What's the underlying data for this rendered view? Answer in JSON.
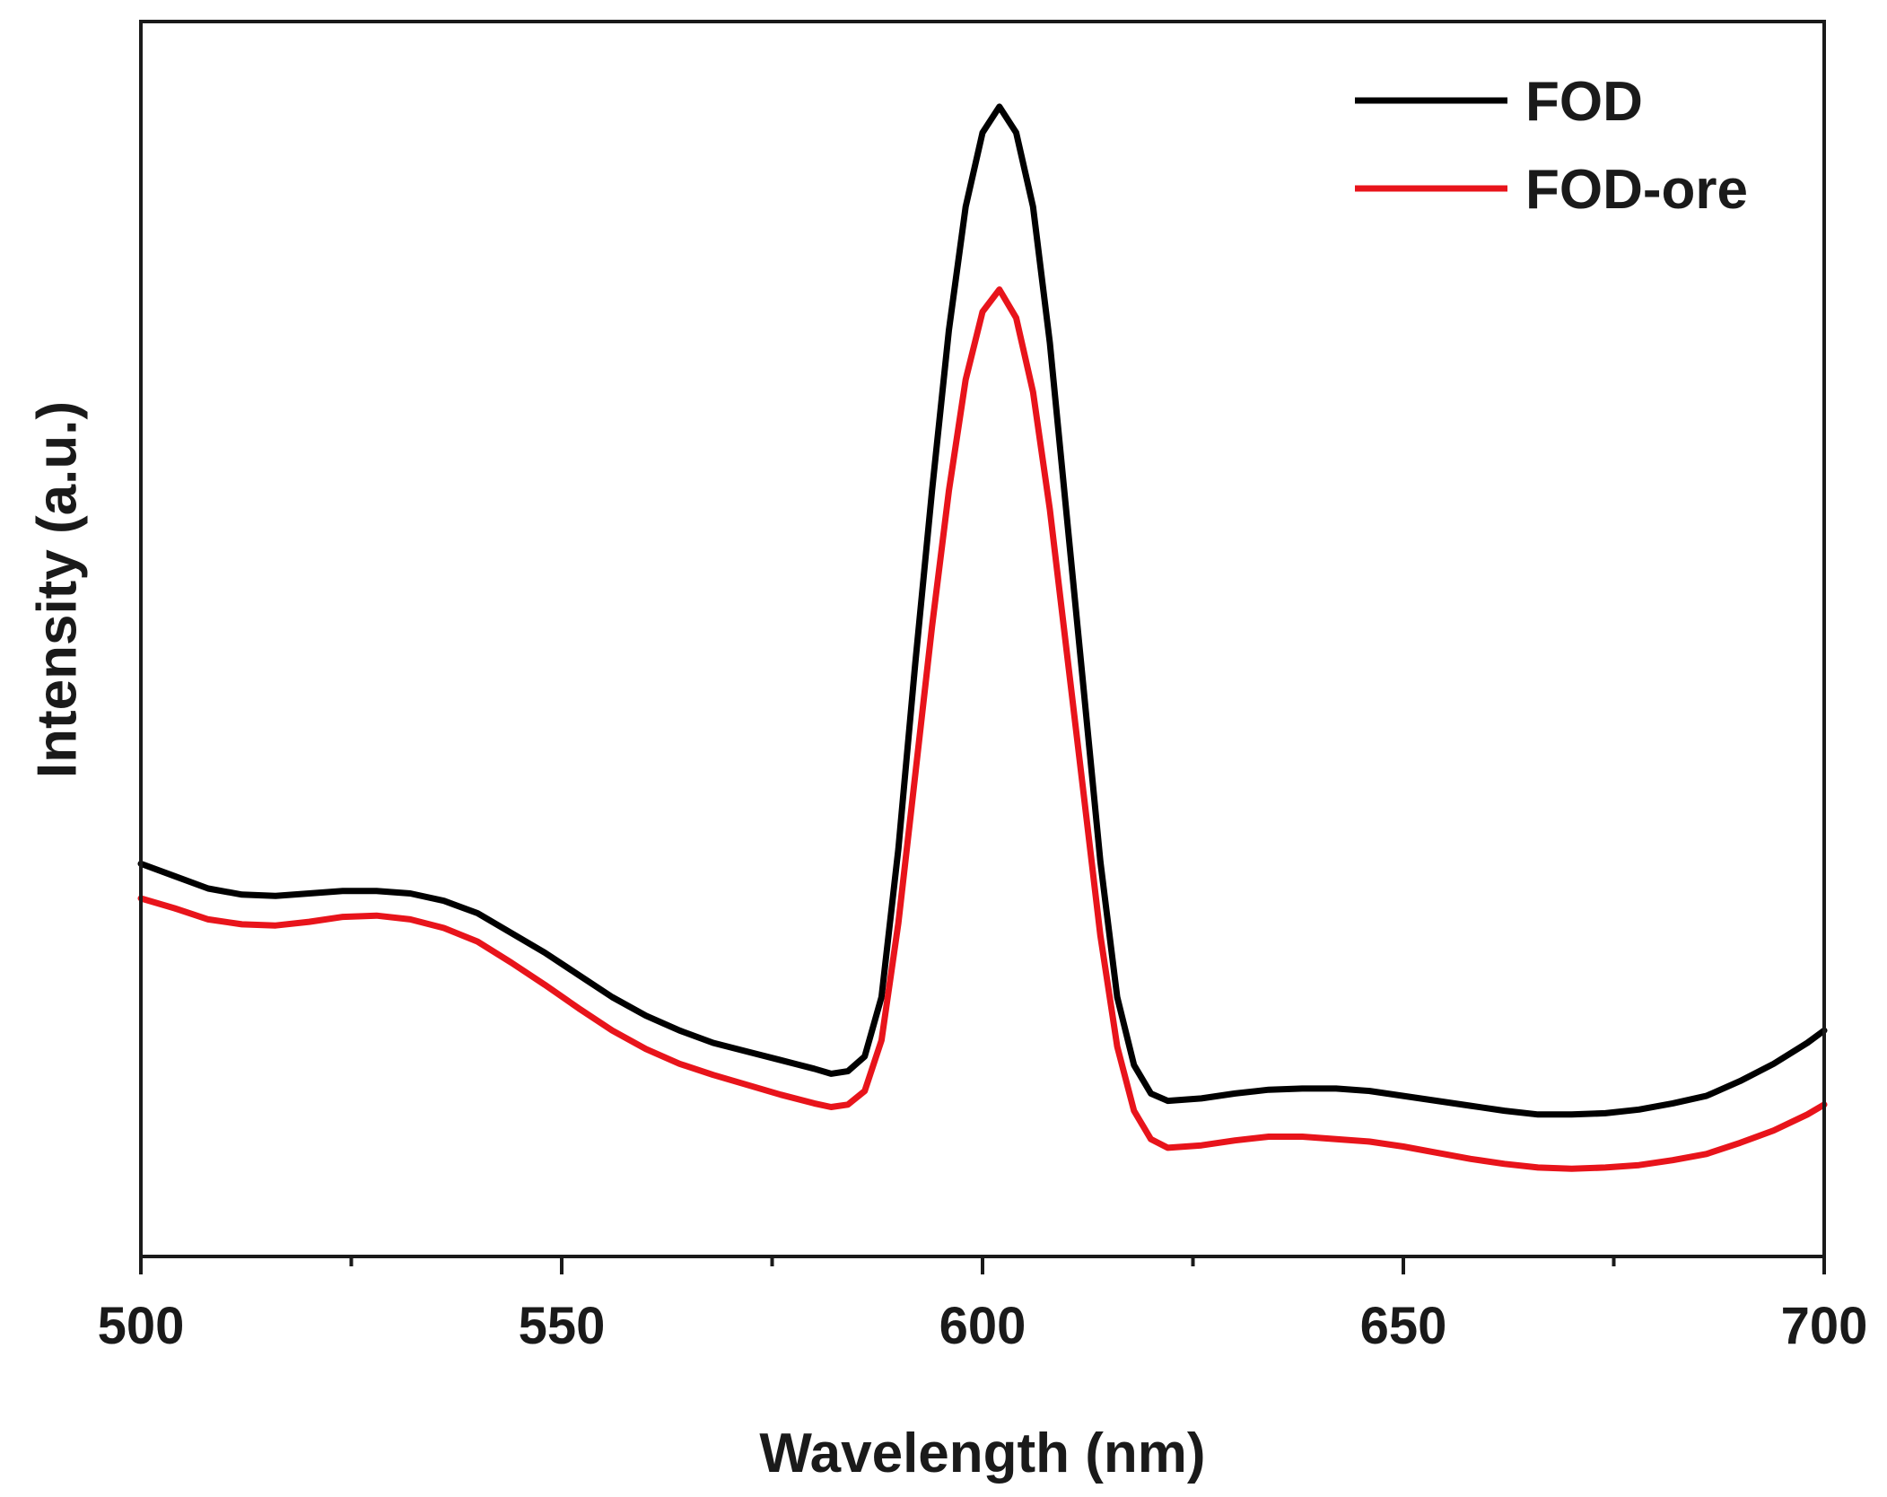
{
  "chart_data": {
    "type": "line",
    "title": "",
    "xlabel": "Wavelength (nm)",
    "ylabel": "Intensity (a.u.)",
    "xlim": [
      500,
      700
    ],
    "ylim": [
      0,
      100
    ],
    "x_ticks": [
      500,
      550,
      600,
      650,
      700
    ],
    "x_tick_labels": [
      "500",
      "550",
      "600",
      "650",
      "700"
    ],
    "x_minor_ticks": [
      525,
      575,
      625,
      675
    ],
    "y_ticks_shown": false,
    "grid": false,
    "legend_position": "top-right",
    "series": [
      {
        "name": "FOD",
        "color": "#000000",
        "points": [
          [
            500,
            31.8
          ],
          [
            504,
            30.8
          ],
          [
            508,
            29.8
          ],
          [
            512,
            29.3
          ],
          [
            516,
            29.2
          ],
          [
            520,
            29.4
          ],
          [
            524,
            29.6
          ],
          [
            528,
            29.6
          ],
          [
            532,
            29.4
          ],
          [
            536,
            28.8
          ],
          [
            540,
            27.8
          ],
          [
            544,
            26.2
          ],
          [
            548,
            24.6
          ],
          [
            552,
            22.8
          ],
          [
            556,
            21.0
          ],
          [
            560,
            19.5
          ],
          [
            564,
            18.3
          ],
          [
            568,
            17.3
          ],
          [
            572,
            16.6
          ],
          [
            576,
            15.9
          ],
          [
            580,
            15.2
          ],
          [
            582,
            14.8
          ],
          [
            584,
            15.0
          ],
          [
            586,
            16.2
          ],
          [
            588,
            21.0
          ],
          [
            590,
            33.0
          ],
          [
            592,
            48.0
          ],
          [
            594,
            62.0
          ],
          [
            596,
            75.0
          ],
          [
            598,
            85.0
          ],
          [
            600,
            91.0
          ],
          [
            602,
            93.1
          ],
          [
            604,
            91.0
          ],
          [
            606,
            85.0
          ],
          [
            608,
            74.0
          ],
          [
            610,
            60.0
          ],
          [
            612,
            46.0
          ],
          [
            614,
            32.0
          ],
          [
            616,
            21.0
          ],
          [
            618,
            15.5
          ],
          [
            620,
            13.2
          ],
          [
            622,
            12.6
          ],
          [
            626,
            12.8
          ],
          [
            630,
            13.2
          ],
          [
            634,
            13.5
          ],
          [
            638,
            13.6
          ],
          [
            642,
            13.6
          ],
          [
            646,
            13.4
          ],
          [
            650,
            13.0
          ],
          [
            654,
            12.6
          ],
          [
            658,
            12.2
          ],
          [
            662,
            11.8
          ],
          [
            666,
            11.5
          ],
          [
            670,
            11.5
          ],
          [
            674,
            11.6
          ],
          [
            678,
            11.9
          ],
          [
            682,
            12.4
          ],
          [
            686,
            13.0
          ],
          [
            690,
            14.2
          ],
          [
            694,
            15.6
          ],
          [
            698,
            17.3
          ],
          [
            700,
            18.3
          ]
        ]
      },
      {
        "name": "FOD-ore",
        "color": "#e8141b",
        "points": [
          [
            500,
            29.0
          ],
          [
            504,
            28.2
          ],
          [
            508,
            27.3
          ],
          [
            512,
            26.9
          ],
          [
            516,
            26.8
          ],
          [
            520,
            27.1
          ],
          [
            524,
            27.5
          ],
          [
            528,
            27.6
          ],
          [
            532,
            27.3
          ],
          [
            536,
            26.6
          ],
          [
            540,
            25.5
          ],
          [
            544,
            23.8
          ],
          [
            548,
            22.0
          ],
          [
            552,
            20.1
          ],
          [
            556,
            18.3
          ],
          [
            560,
            16.8
          ],
          [
            564,
            15.6
          ],
          [
            568,
            14.7
          ],
          [
            572,
            13.9
          ],
          [
            576,
            13.1
          ],
          [
            580,
            12.4
          ],
          [
            582,
            12.1
          ],
          [
            584,
            12.3
          ],
          [
            586,
            13.4
          ],
          [
            588,
            17.5
          ],
          [
            590,
            27.0
          ],
          [
            592,
            39.0
          ],
          [
            594,
            51.0
          ],
          [
            596,
            62.0
          ],
          [
            598,
            71.0
          ],
          [
            600,
            76.5
          ],
          [
            602,
            78.3
          ],
          [
            604,
            76.0
          ],
          [
            606,
            70.0
          ],
          [
            608,
            60.5
          ],
          [
            610,
            49.0
          ],
          [
            612,
            37.5
          ],
          [
            614,
            26.0
          ],
          [
            616,
            17.0
          ],
          [
            618,
            11.8
          ],
          [
            620,
            9.5
          ],
          [
            622,
            8.8
          ],
          [
            626,
            9.0
          ],
          [
            630,
            9.4
          ],
          [
            634,
            9.7
          ],
          [
            638,
            9.7
          ],
          [
            642,
            9.5
          ],
          [
            646,
            9.3
          ],
          [
            650,
            8.9
          ],
          [
            654,
            8.4
          ],
          [
            658,
            7.9
          ],
          [
            662,
            7.5
          ],
          [
            666,
            7.2
          ],
          [
            670,
            7.1
          ],
          [
            674,
            7.2
          ],
          [
            678,
            7.4
          ],
          [
            682,
            7.8
          ],
          [
            686,
            8.3
          ],
          [
            690,
            9.2
          ],
          [
            694,
            10.2
          ],
          [
            698,
            11.5
          ],
          [
            700,
            12.3
          ]
        ]
      }
    ]
  }
}
